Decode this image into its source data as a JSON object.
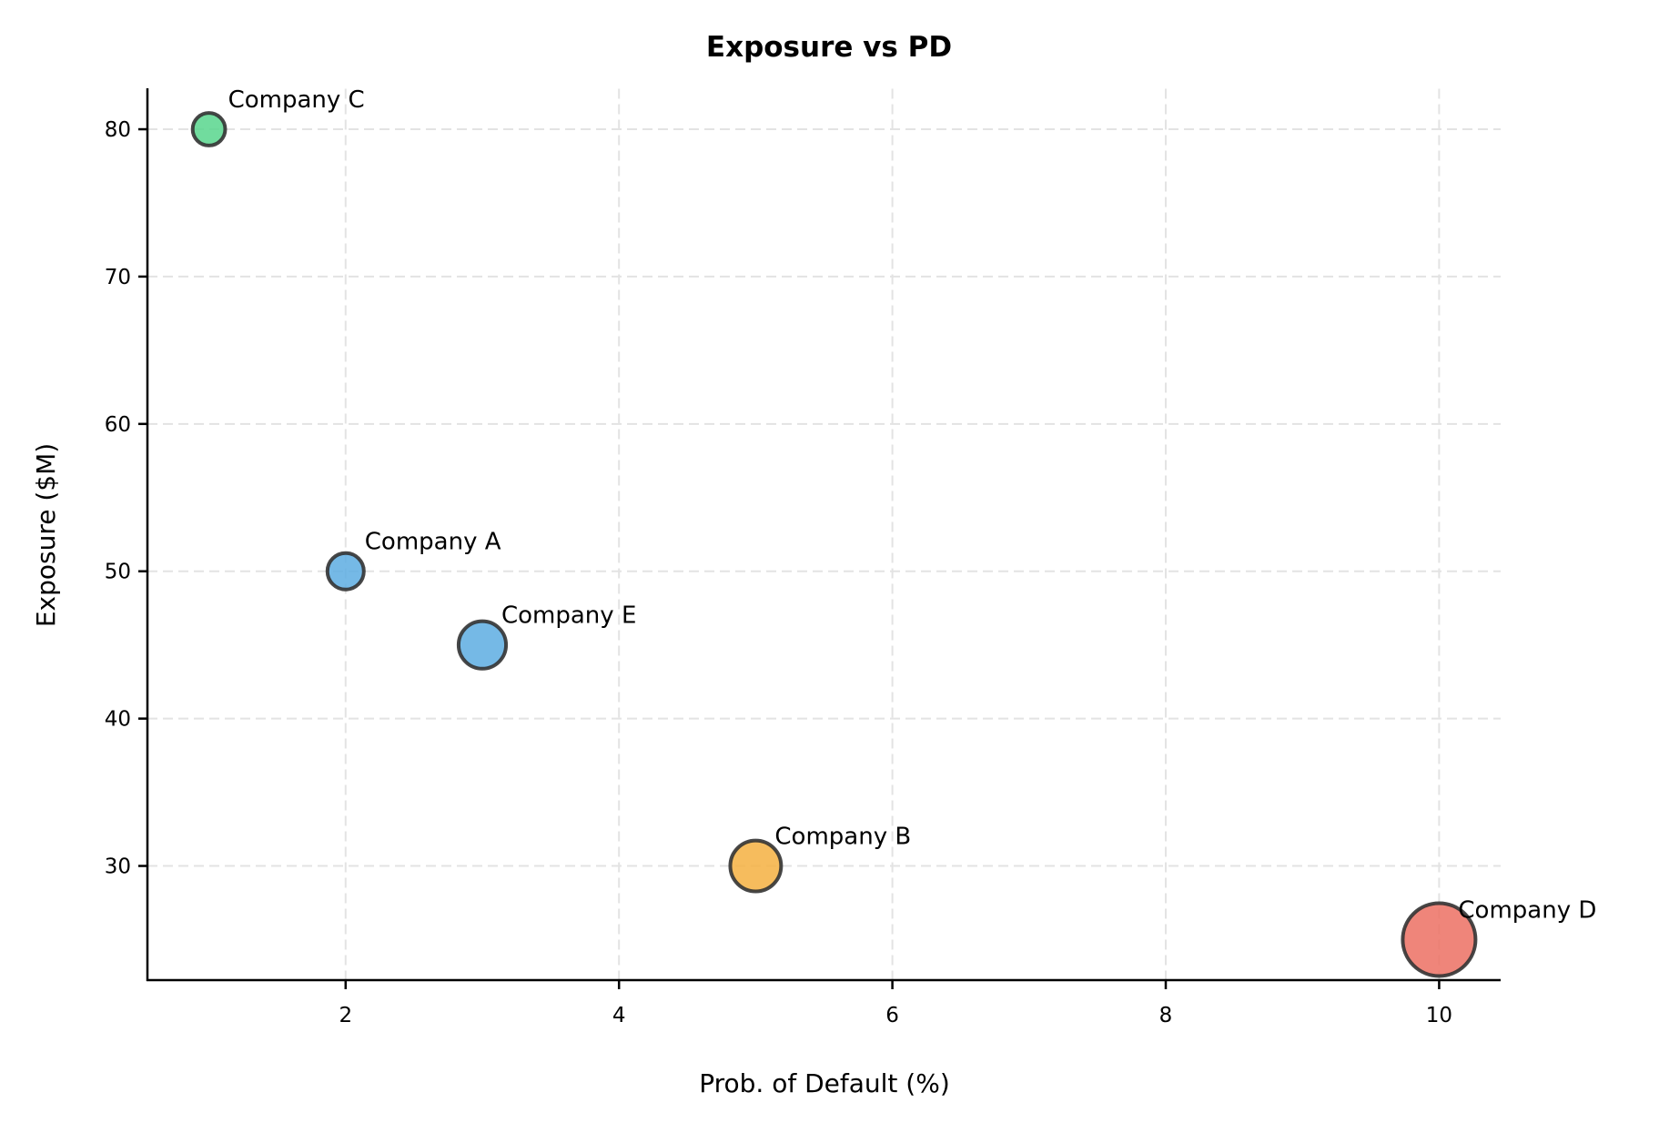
{
  "chart_data": {
    "type": "scatter",
    "title": "Exposure vs PD",
    "xlabel": "Prob. of Default (%)",
    "ylabel": "Exposure ($M)",
    "xlim": [
      0.55,
      10.45
    ],
    "ylim": [
      22.25,
      82.75
    ],
    "xticks": [
      2,
      4,
      6,
      8,
      10
    ],
    "yticks": [
      30,
      40,
      50,
      60,
      70,
      80
    ],
    "grid": true,
    "points": [
      {
        "label": "Company A",
        "x": 2,
        "y": 50,
        "size": 400,
        "color": "#5dade2"
      },
      {
        "label": "Company B",
        "x": 5,
        "y": 30,
        "size": 780,
        "color": "#f5b041"
      },
      {
        "label": "Company C",
        "x": 1,
        "y": 80,
        "size": 320,
        "color": "#58d68d"
      },
      {
        "label": "Company D",
        "x": 10,
        "y": 25,
        "size": 1600,
        "color": "#ec7063"
      },
      {
        "label": "Company E",
        "x": 3,
        "y": 45,
        "size": 680,
        "color": "#5dade2"
      }
    ],
    "edge_color": "#333333"
  }
}
